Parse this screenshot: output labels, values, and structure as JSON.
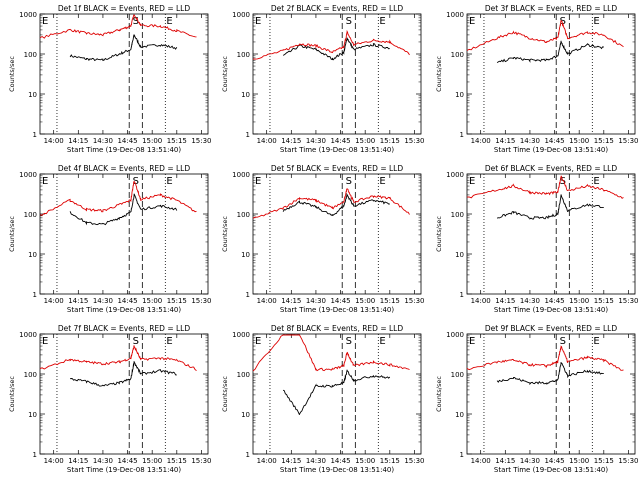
{
  "figure": {
    "x_axis_title": "Start Time (19-Dec-08 13:51:40)",
    "y_axis_title": "Counts/sec",
    "time_ticks": [
      "14:00",
      "14:15",
      "14:30",
      "14:45",
      "15:00",
      "15:15",
      "15:30"
    ],
    "y_ticks": [
      "1",
      "10",
      "100",
      "1000"
    ],
    "event_markers": {
      "start": "E",
      "saa": "S",
      "end": "E"
    },
    "colors": {
      "events": "#000000",
      "lld": "#dd0000"
    }
  },
  "chart_data": [
    {
      "type": "line",
      "title": "Det 1f BLACK = Events, RED = LLD",
      "xlabel": "Start Time (19-Dec-08 13:51:40)",
      "ylabel": "Counts/sec",
      "yscale": "log",
      "ylim": [
        1,
        1000
      ],
      "x": [
        "13:51:40",
        "14:10",
        "14:20",
        "14:30",
        "14:40",
        "14:47",
        "14:49",
        "14:53",
        "15:05",
        "15:15",
        "15:27"
      ],
      "series": [
        {
          "name": "BLACK = Events",
          "values": [
            null,
            90,
            75,
            70,
            100,
            130,
            300,
            150,
            170,
            140,
            null
          ]
        },
        {
          "name": "RED = LLD",
          "values": [
            250,
            400,
            330,
            300,
            400,
            500,
            1000,
            520,
            500,
            380,
            260
          ]
        }
      ]
    },
    {
      "type": "line",
      "title": "Det 2f BLACK = Events, RED = LLD",
      "xlabel": "Start Time (19-Dec-08 13:51:40)",
      "ylabel": "Counts/sec",
      "yscale": "log",
      "ylim": [
        1,
        1000
      ],
      "x": [
        "13:51:40",
        "14:10",
        "14:20",
        "14:30",
        "14:40",
        "14:47",
        "14:49",
        "14:53",
        "15:05",
        "15:15",
        "15:27"
      ],
      "series": [
        {
          "name": "BLACK = Events",
          "values": [
            null,
            90,
            160,
            130,
            75,
            110,
            250,
            130,
            170,
            140,
            null
          ]
        },
        {
          "name": "RED = LLD",
          "values": [
            75,
            120,
            180,
            160,
            110,
            150,
            350,
            170,
            220,
            200,
            100
          ]
        }
      ]
    },
    {
      "type": "line",
      "title": "Det 3f BLACK = Events, RED = LLD",
      "xlabel": "Start Time (19-Dec-08 13:51:40)",
      "ylabel": "Counts/sec",
      "yscale": "log",
      "ylim": [
        1,
        1000
      ],
      "x": [
        "13:51:40",
        "14:10",
        "14:20",
        "14:30",
        "14:40",
        "14:47",
        "14:49",
        "14:53",
        "15:05",
        "15:15",
        "15:27"
      ],
      "series": [
        {
          "name": "BLACK = Events",
          "values": [
            null,
            60,
            80,
            70,
            70,
            90,
            200,
            100,
            170,
            140,
            null
          ]
        },
        {
          "name": "RED = LLD",
          "values": [
            120,
            250,
            350,
            250,
            200,
            250,
            700,
            250,
            350,
            300,
            150
          ]
        }
      ]
    },
    {
      "type": "line",
      "title": "Det 4f BLACK = Events, RED = LLD",
      "xlabel": "Start Time (19-Dec-08 13:51:40)",
      "ylabel": "Counts/sec",
      "yscale": "log",
      "ylim": [
        1,
        1000
      ],
      "x": [
        "13:51:40",
        "14:10",
        "14:20",
        "14:30",
        "14:40",
        "14:47",
        "14:49",
        "14:53",
        "15:05",
        "15:15",
        "15:27"
      ],
      "series": [
        {
          "name": "BLACK = Events",
          "values": [
            null,
            110,
            60,
            55,
            80,
            110,
            300,
            130,
            160,
            130,
            null
          ]
        },
        {
          "name": "RED = LLD",
          "values": [
            90,
            220,
            130,
            120,
            170,
            220,
            700,
            230,
            300,
            220,
            110
          ]
        }
      ]
    },
    {
      "type": "line",
      "title": "Det 5f BLACK = Events, RED = LLD",
      "xlabel": "Start Time (19-Dec-08 13:51:40)",
      "ylabel": "Counts/sec",
      "yscale": "log",
      "ylim": [
        1,
        1000
      ],
      "x": [
        "13:51:40",
        "14:10",
        "14:20",
        "14:30",
        "14:40",
        "14:47",
        "14:49",
        "14:53",
        "15:05",
        "15:15",
        "15:27"
      ],
      "series": [
        {
          "name": "BLACK = Events",
          "values": [
            null,
            120,
            200,
            150,
            90,
            160,
            300,
            160,
            220,
            180,
            null
          ]
        },
        {
          "name": "RED = LLD",
          "values": [
            75,
            140,
            250,
            220,
            140,
            200,
            450,
            200,
            280,
            250,
            100
          ]
        }
      ]
    },
    {
      "type": "line",
      "title": "Det 6f BLACK = Events, RED = LLD",
      "xlabel": "Start Time (19-Dec-08 13:51:40)",
      "ylabel": "Counts/sec",
      "yscale": "log",
      "ylim": [
        1,
        1000
      ],
      "x": [
        "13:51:40",
        "14:10",
        "14:20",
        "14:30",
        "14:40",
        "14:47",
        "14:49",
        "14:53",
        "15:05",
        "15:15",
        "15:27"
      ],
      "series": [
        {
          "name": "BLACK = Events",
          "values": [
            null,
            80,
            110,
            80,
            80,
            100,
            300,
            120,
            170,
            150,
            null
          ]
        },
        {
          "name": "RED = LLD",
          "values": [
            250,
            400,
            500,
            350,
            320,
            350,
            900,
            380,
            500,
            400,
            250
          ]
        }
      ]
    },
    {
      "type": "line",
      "title": "Det 7f BLACK = Events, RED = LLD",
      "xlabel": "Start Time (19-Dec-08 13:51:40)",
      "ylabel": "Counts/sec",
      "yscale": "log",
      "ylim": [
        1,
        1000
      ],
      "x": [
        "13:51:40",
        "14:10",
        "14:20",
        "14:30",
        "14:40",
        "14:47",
        "14:49",
        "14:53",
        "15:05",
        "15:15",
        "15:27"
      ],
      "series": [
        {
          "name": "BLACK = Events",
          "values": [
            null,
            75,
            65,
            50,
            60,
            75,
            200,
            100,
            120,
            100,
            null
          ]
        },
        {
          "name": "RED = LLD",
          "values": [
            130,
            230,
            200,
            180,
            200,
            250,
            500,
            230,
            250,
            220,
            130
          ]
        }
      ]
    },
    {
      "type": "line",
      "title": "Det 8f BLACK = Events, RED = LLD",
      "xlabel": "Start Time (19-Dec-08 13:51:40)",
      "ylabel": "Counts/sec",
      "yscale": "log",
      "ylim": [
        1,
        1000
      ],
      "x": [
        "13:51:40",
        "14:10",
        "14:20",
        "14:30",
        "14:40",
        "14:47",
        "14:49",
        "14:53",
        "15:05",
        "15:15",
        "15:27"
      ],
      "series": [
        {
          "name": "BLACK = Events",
          "values": [
            null,
            40,
            10,
            50,
            50,
            60,
            120,
            70,
            90,
            80,
            null
          ]
        },
        {
          "name": "RED = LLD",
          "values": [
            120,
            1000,
            1000,
            130,
            130,
            160,
            350,
            160,
            200,
            170,
            130
          ]
        }
      ]
    },
    {
      "type": "line",
      "title": "Det 9f BLACK = Events, RED = LLD",
      "xlabel": "Start Time (19-Dec-08 13:51:40)",
      "ylabel": "Counts/sec",
      "yscale": "log",
      "ylim": [
        1,
        1000
      ],
      "x": [
        "13:51:40",
        "14:10",
        "14:20",
        "14:30",
        "14:40",
        "14:47",
        "14:49",
        "14:53",
        "15:05",
        "15:15",
        "15:27"
      ],
      "series": [
        {
          "name": "BLACK = Events",
          "values": [
            null,
            65,
            80,
            60,
            60,
            70,
            200,
            90,
            120,
            100,
            null
          ]
        },
        {
          "name": "RED = LLD",
          "values": [
            130,
            200,
            220,
            170,
            160,
            200,
            500,
            200,
            260,
            220,
            120
          ]
        }
      ]
    }
  ]
}
